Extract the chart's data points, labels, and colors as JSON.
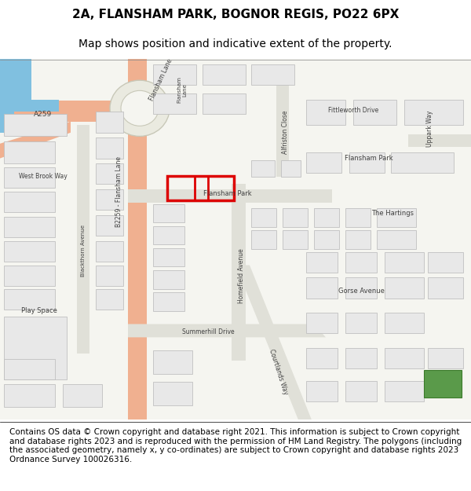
{
  "title_line1": "2A, FLANSHAM PARK, BOGNOR REGIS, PO22 6PX",
  "title_line2": "Map shows position and indicative extent of the property.",
  "copyright_text": "Contains OS data © Crown copyright and database right 2021. This information is subject to Crown copyright and database rights 2023 and is reproduced with the permission of HM Land Registry. The polygons (including the associated geometry, namely x, y co-ordinates) are subject to Crown copyright and database rights 2023 Ordnance Survey 100026316.",
  "title_fontsize": 11,
  "subtitle_fontsize": 10,
  "copyright_fontsize": 7.5,
  "map_bg": "#f5f5f0",
  "building_color": "#e8e8e8",
  "building_edge": "#c0c0c0",
  "plot_color": "#dd0000",
  "green_color": "#5a9a4a",
  "figure_width": 6.0,
  "figure_height": 6.25
}
